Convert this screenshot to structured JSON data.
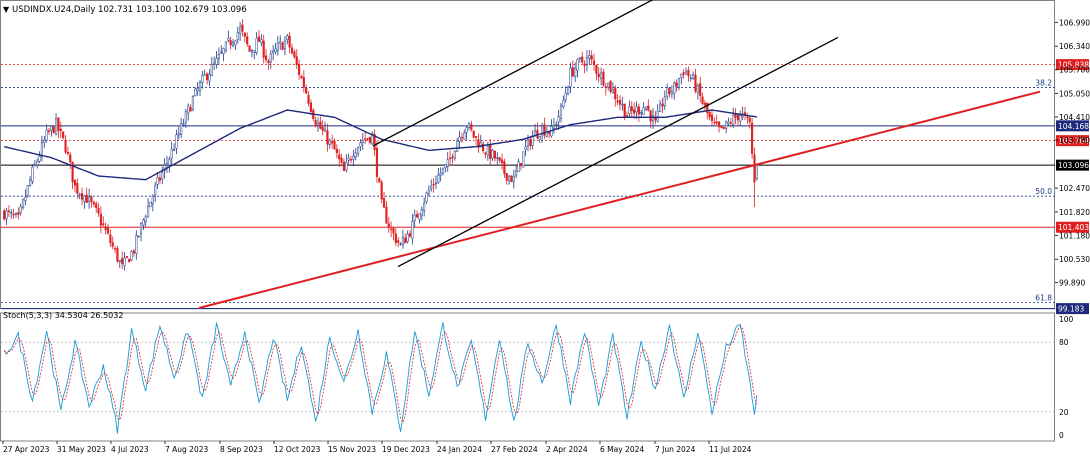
{
  "header": {
    "symbol_line": "USDINDX.U24,Daily  102.731 103.100 102.679 103.096",
    "menu_arrow": "down-triangle-icon"
  },
  "chart_data": [
    {
      "type": "line",
      "title": "USDINDX.U24,Daily",
      "ohlc_header": {
        "open": 102.731,
        "high": 103.1,
        "low": 102.679,
        "close": 103.096
      },
      "y_ticks": [
        "106.990",
        "106.340",
        "105.700",
        "105.050",
        "104.410",
        "103.780",
        "102.470",
        "101.820",
        "101.180",
        "100.530",
        "99.890"
      ],
      "ylim": [
        99.2,
        107.6
      ],
      "x_tick_labels": [
        "27 Apr 2023",
        "31 May 2023",
        "4 Jul 2023",
        "7 Aug 2023",
        "8 Sep 2023",
        "12 Oct 2023",
        "15 Nov 2023",
        "19 Dec 2023",
        "24 Jan 2024",
        "27 Feb 2024",
        "2 Apr 2024",
        "6 May 2024",
        "7 Jun 2024",
        "11 Jul 2024"
      ],
      "bars_total": 320,
      "series": [
        {
          "kind": "close",
          "color_up": "#1e3a8a",
          "color_down": "#e02020",
          "anchors": [
            [
              0,
              101.8
            ],
            [
              6,
              101.6
            ],
            [
              12,
              102.9
            ],
            [
              18,
              103.9
            ],
            [
              22,
              104.2
            ],
            [
              26,
              103.6
            ],
            [
              30,
              102.5
            ],
            [
              35,
              102.2
            ],
            [
              40,
              101.7
            ],
            [
              45,
              101.0
            ],
            [
              50,
              100.3
            ],
            [
              55,
              100.8
            ],
            [
              60,
              101.8
            ],
            [
              65,
              102.6
            ],
            [
              70,
              103.3
            ],
            [
              75,
              104.1
            ],
            [
              80,
              104.9
            ],
            [
              85,
              105.5
            ],
            [
              90,
              105.9
            ],
            [
              95,
              106.4
            ],
            [
              100,
              106.8
            ],
            [
              104,
              106.2
            ],
            [
              108,
              106.5
            ],
            [
              112,
              105.9
            ],
            [
              116,
              106.3
            ],
            [
              120,
              106.5
            ],
            [
              124,
              105.8
            ],
            [
              128,
              105.1
            ],
            [
              132,
              104.3
            ],
            [
              136,
              103.9
            ],
            [
              140,
              103.5
            ],
            [
              144,
              102.9
            ],
            [
              148,
              103.5
            ],
            [
              152,
              103.8
            ],
            [
              156,
              103.9
            ],
            [
              160,
              102.0
            ],
            [
              164,
              101.3
            ],
            [
              168,
              100.9
            ],
            [
              172,
              101.3
            ],
            [
              176,
              101.9
            ],
            [
              180,
              102.4
            ],
            [
              184,
              102.8
            ],
            [
              188,
              103.1
            ],
            [
              192,
              103.8
            ],
            [
              196,
              104.2
            ],
            [
              200,
              103.8
            ],
            [
              204,
              103.5
            ],
            [
              208,
              103.3
            ],
            [
              212,
              102.9
            ],
            [
              216,
              102.7
            ],
            [
              220,
              103.4
            ],
            [
              224,
              103.9
            ],
            [
              228,
              104.1
            ],
            [
              232,
              104.0
            ],
            [
              236,
              104.6
            ],
            [
              240,
              105.6
            ],
            [
              244,
              105.9
            ],
            [
              248,
              106.0
            ],
            [
              252,
              105.6
            ],
            [
              256,
              105.3
            ],
            [
              260,
              104.9
            ],
            [
              264,
              104.5
            ],
            [
              268,
              104.6
            ],
            [
              272,
              104.7
            ],
            [
              276,
              104.2
            ],
            [
              280,
              105.0
            ],
            [
              284,
              105.2
            ],
            [
              288,
              105.7
            ],
            [
              292,
              105.4
            ],
            [
              296,
              104.8
            ],
            [
              300,
              104.2
            ],
            [
              304,
              104.0
            ],
            [
              308,
              104.3
            ],
            [
              312,
              104.5
            ],
            [
              316,
              104.2
            ],
            [
              318,
              102.6
            ],
            [
              320,
              103.1
            ]
          ]
        },
        {
          "kind": "moving-average",
          "color": "#1e2a7a",
          "anchors": [
            [
              0,
              103.6
            ],
            [
              20,
              103.3
            ],
            [
              40,
              102.8
            ],
            [
              60,
              102.7
            ],
            [
              80,
              103.4
            ],
            [
              100,
              104.1
            ],
            [
              120,
              104.6
            ],
            [
              140,
              104.4
            ],
            [
              160,
              103.8
            ],
            [
              180,
              103.5
            ],
            [
              200,
              103.6
            ],
            [
              220,
              103.8
            ],
            [
              240,
              104.2
            ],
            [
              260,
              104.4
            ],
            [
              280,
              104.4
            ],
            [
              300,
              104.6
            ],
            [
              320,
              104.4
            ]
          ]
        },
        {
          "kind": "stochastic",
          "name": "Stoch(5,3,3)",
          "main_color": "#1a9bd6",
          "signal_color": "#e02020",
          "anchors": [
            [
              0,
              70
            ],
            [
              6,
              85
            ],
            [
              12,
              30
            ],
            [
              18,
              90
            ],
            [
              24,
              20
            ],
            [
              30,
              80
            ],
            [
              36,
              25
            ],
            [
              42,
              60
            ],
            [
              48,
              5
            ],
            [
              54,
              90
            ],
            [
              60,
              40
            ],
            [
              66,
              95
            ],
            [
              72,
              50
            ],
            [
              78,
              90
            ],
            [
              84,
              30
            ],
            [
              90,
              95
            ],
            [
              96,
              40
            ],
            [
              102,
              90
            ],
            [
              108,
              25
            ],
            [
              114,
              85
            ],
            [
              120,
              30
            ],
            [
              126,
              80
            ],
            [
              132,
              10
            ],
            [
              138,
              85
            ],
            [
              144,
              45
            ],
            [
              150,
              90
            ],
            [
              156,
              20
            ],
            [
              162,
              70
            ],
            [
              168,
              5
            ],
            [
              174,
              90
            ],
            [
              180,
              35
            ],
            [
              186,
              95
            ],
            [
              192,
              40
            ],
            [
              198,
              80
            ],
            [
              204,
              15
            ],
            [
              210,
              85
            ],
            [
              216,
              10
            ],
            [
              222,
              80
            ],
            [
              228,
              45
            ],
            [
              234,
              95
            ],
            [
              240,
              30
            ],
            [
              246,
              90
            ],
            [
              252,
              25
            ],
            [
              258,
              85
            ],
            [
              264,
              15
            ],
            [
              270,
              80
            ],
            [
              276,
              40
            ],
            [
              282,
              95
            ],
            [
              288,
              30
            ],
            [
              294,
              90
            ],
            [
              300,
              20
            ],
            [
              306,
              75
            ],
            [
              312,
              95
            ],
            [
              318,
              20
            ],
            [
              320,
              34
            ]
          ]
        }
      ],
      "levels": [
        {
          "value": 105.838,
          "label": "105.838",
          "style": "dotted",
          "color": "#e02020"
        },
        {
          "value": 105.215,
          "label": "38.2",
          "style": "dotted",
          "color": "#1e3a8a"
        },
        {
          "value": 104.168,
          "label": "104.168",
          "style": "solid",
          "color": "#1e2a7a"
        },
        {
          "value": 103.764,
          "label": "103.764",
          "style": "dotted",
          "color": "#e02020"
        },
        {
          "value": 103.096,
          "label": "103.096",
          "style": "solid",
          "color": "#000000"
        },
        {
          "value": 102.25,
          "label": "50.0",
          "style": "dotted",
          "color": "#1e3a8a"
        },
        {
          "value": 101.403,
          "label": "101.403",
          "style": "solid",
          "color": "#e02020"
        },
        {
          "value": 99.35,
          "label": "61.8",
          "style": "dotted",
          "color": "#1e3a8a"
        },
        {
          "value": 99.183,
          "label": "99.183",
          "style": "solid",
          "color": "#1e2a7a"
        }
      ],
      "trendlines": [
        {
          "from": [
            199,
            99.2
          ],
          "to": [
            1040,
            105.1
          ],
          "color": "#e02020",
          "kind": "support"
        },
        {
          "from": [
            373,
            103.62
          ],
          "to": [
            655,
            107.64
          ],
          "color": "#000000",
          "kind": "channel-upper"
        },
        {
          "from": [
            398,
            100.33
          ],
          "to": [
            838,
            106.58
          ],
          "color": "#000000",
          "kind": "channel-lower"
        }
      ],
      "stochastic_panel": {
        "label": "Stoch(5,3,3) 34.5304 26.5032",
        "main": 34.5304,
        "signal": 26.5032,
        "ticks": [
          "100",
          "80",
          "20",
          "0"
        ],
        "ylim": [
          0,
          100
        ]
      },
      "grid": false
    }
  ]
}
